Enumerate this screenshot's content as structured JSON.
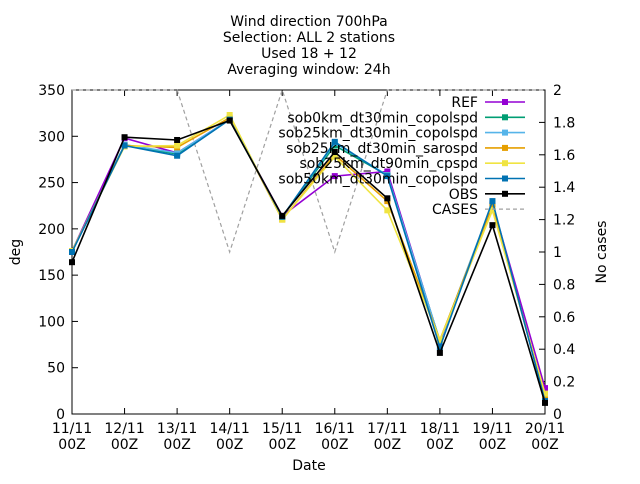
{
  "chart_data": {
    "type": "line",
    "title_lines": [
      "Wind direction 700hPa",
      "Selection: ALL       2 stations",
      "Used 18 + 12",
      "Averaging window: 24h"
    ],
    "xlabel": "Date",
    "ylabel": "deg",
    "y2label": "No cases",
    "categories": [
      "11/11 00Z",
      "12/11 00Z",
      "13/11 00Z",
      "14/11 00Z",
      "15/11 00Z",
      "16/11 00Z",
      "17/11 00Z",
      "18/11 00Z",
      "19/11 00Z",
      "20/11 00Z"
    ],
    "ylim": [
      0,
      350
    ],
    "y_ticks": [
      0,
      50,
      100,
      150,
      200,
      250,
      300,
      350
    ],
    "y2lim": [
      0,
      2
    ],
    "y2_ticks": [
      0,
      0.2,
      0.4,
      0.6,
      0.8,
      1,
      1.2,
      1.4,
      1.6,
      1.8,
      2
    ],
    "legend_position": "top-right",
    "series": [
      {
        "name": "REF",
        "color": "#9400d3",
        "marker": "square",
        "values": [
          176,
          298,
          282,
          318,
          214,
          257,
          262,
          78,
          227,
          28
        ]
      },
      {
        "name": "sob0km_dt30min_copolspd",
        "color": "#009e73",
        "marker": "square",
        "values": [
          176,
          290,
          281,
          318,
          213,
          290,
          258,
          79,
          226,
          18
        ]
      },
      {
        "name": "sob25km_dt30min_copolspd",
        "color": "#56b4e9",
        "marker": "square",
        "values": [
          176,
          291,
          282,
          318,
          213,
          293,
          258,
          79,
          228,
          16
        ]
      },
      {
        "name": "sob25km_dt30min_sarospd",
        "color": "#e69f00",
        "marker": "square",
        "values": [
          176,
          290,
          288,
          320,
          210,
          280,
          230,
          80,
          225,
          18
        ]
      },
      {
        "name": "sob25km_dt90min_cpspd",
        "color": "#f0e442",
        "marker": "square",
        "values": [
          176,
          289,
          290,
          323,
          210,
          278,
          220,
          80,
          220,
          22
        ]
      },
      {
        "name": "sob50km_dt30min_copolspd",
        "color": "#0072b2",
        "marker": "square",
        "values": [
          175,
          290,
          279,
          318,
          213,
          294,
          257,
          72,
          230,
          14
        ]
      },
      {
        "name": "OBS",
        "color": "#000000",
        "marker": "square",
        "values": [
          164,
          299,
          296,
          317,
          214,
          283,
          233,
          66,
          204,
          12
        ]
      }
    ],
    "cases_series": {
      "name": "CASES",
      "color": "#a0a0a0",
      "axis": "y2",
      "style": "dashed",
      "values": [
        2,
        2,
        2,
        1,
        2,
        1,
        2,
        2,
        2,
        2
      ]
    }
  }
}
